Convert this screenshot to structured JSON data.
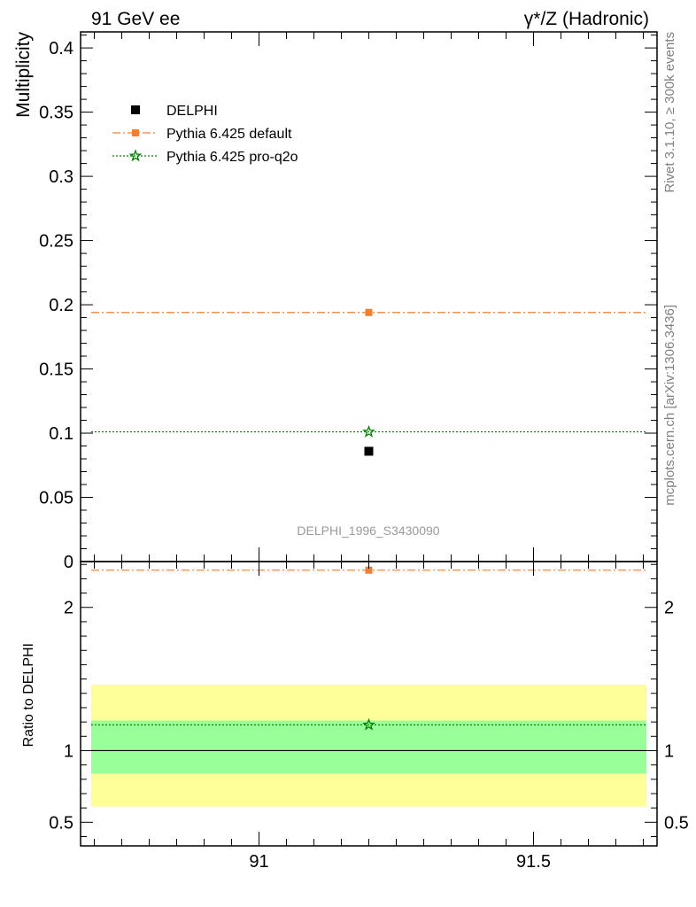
{
  "header": {
    "left_title": "91 GeV ee",
    "right_title": "γ*/Z (Hadronic)"
  },
  "side_labels": {
    "rivet": "Rivet 3.1.10, ≥ 300k events",
    "mcplots": "mcplots.cern.ch [arXiv:1306.3436]"
  },
  "watermark": "DELPHI_1996_S3430090",
  "chart_data": [
    {
      "type": "scatter",
      "panel": "main",
      "ylabel": "Multiplicity",
      "xlim": [
        90.675,
        91.725
      ],
      "ylim": [
        0,
        0.4125
      ],
      "yticks": [
        0,
        0.05,
        0.1,
        0.15,
        0.2,
        0.25,
        0.3,
        0.35,
        0.4
      ],
      "ytick_labels": [
        "0",
        "0.05",
        "0.1",
        "0.15",
        "0.2",
        "0.25",
        "0.3",
        "0.35",
        "0.4"
      ],
      "legend_position": "top-left",
      "series": [
        {
          "name": "DELPHI",
          "color": "#000000",
          "marker": "square",
          "line": "none",
          "x": [
            91.2
          ],
          "y": [
            0.0859
          ]
        },
        {
          "name": "Pythia 6.425 default",
          "color": "#f07f32",
          "marker": "square",
          "line": "dash-dot",
          "x": [
            91.2
          ],
          "y": [
            0.194
          ]
        },
        {
          "name": "Pythia 6.425 pro-q2o",
          "color": "#008000",
          "marker": "star",
          "line": "dotted",
          "x": [
            91.2
          ],
          "y": [
            0.101
          ]
        }
      ]
    },
    {
      "type": "scatter",
      "panel": "ratio",
      "ylabel": "Ratio to DELPHI",
      "xlim": [
        90.675,
        91.725
      ],
      "ylim": [
        0.335,
        2.32
      ],
      "xticks": [
        91,
        91.5
      ],
      "xtick_labels": [
        "91",
        "91.5"
      ],
      "yticks": [
        0.5,
        1,
        2
      ],
      "ytick_labels": [
        "0.5",
        "1",
        "2"
      ],
      "bands": {
        "outer": {
          "low": 0.61,
          "high": 1.46,
          "color": "#ffff99"
        },
        "inner": {
          "low": 0.84,
          "high": 1.21,
          "color": "#99ff99"
        }
      },
      "series": [
        {
          "name": "Pythia 6.425 default",
          "color": "#f07f32",
          "marker": "square",
          "x": [
            91.2
          ],
          "y": [
            2.26
          ]
        },
        {
          "name": "Pythia 6.425 pro-q2o",
          "color": "#008000",
          "marker": "star",
          "x": [
            91.2
          ],
          "y": [
            1.18
          ]
        }
      ]
    }
  ]
}
